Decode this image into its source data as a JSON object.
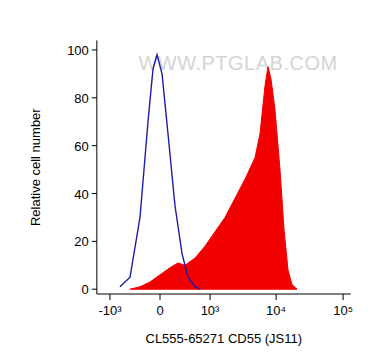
{
  "chart_data": {
    "type": "area",
    "x_label": "CL555-65271 CD55 (JS11)",
    "y_label": "Relative cell number",
    "annotations": [
      "WWW.PTGLAB.COM"
    ],
    "xlim": [
      -1600,
      130000
    ],
    "ylim": [
      -2,
      104
    ],
    "xticks": [
      {
        "value": -1000,
        "label": "-10³"
      },
      0,
      {
        "value": 1000,
        "label": "10³"
      },
      {
        "value": 10000,
        "label": "10⁴"
      },
      {
        "value": 100000,
        "label": "10⁵"
      }
    ],
    "yticks": [
      0,
      20,
      40,
      60,
      80,
      100
    ],
    "series": [
      {
        "type": "area",
        "color": "#f20000",
        "x": [
          -452,
          -275,
          -130,
          0,
          130,
          244,
          358,
          561,
          829,
          1197,
          1709,
          2420,
          3422,
          4836,
          5742,
          6819,
          7563,
          8381,
          9620,
          11433,
          13117,
          15059,
          17261,
          20500
        ],
        "values": [
          0,
          1,
          3,
          6,
          9,
          11,
          10,
          13,
          18,
          24,
          30,
          38,
          46,
          55,
          65,
          85,
          93,
          88,
          75,
          50,
          25,
          8,
          2,
          0
        ]
      },
      {
        "type": "line",
        "color": "#1c1ca8",
        "x": [
          -686,
          -452,
          -275,
          -157,
          -90,
          -38,
          26,
          103,
          199,
          307,
          413,
          561,
          686
        ],
        "values": [
          1,
          5,
          30,
          70,
          92,
          98,
          90,
          65,
          35,
          15,
          5,
          1,
          0
        ]
      }
    ]
  }
}
